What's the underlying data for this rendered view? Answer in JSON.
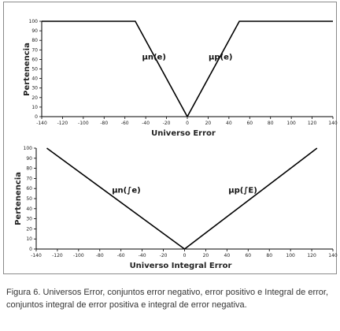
{
  "chart_data": [
    {
      "type": "line",
      "xlabel": "Universo Error",
      "ylabel": "Pertenencia",
      "xlim": [
        -140,
        140
      ],
      "ylim": [
        0,
        100
      ],
      "xticks": [
        -140,
        -120,
        -100,
        -80,
        -60,
        -40,
        -20,
        0,
        20,
        40,
        60,
        80,
        100,
        120,
        140
      ],
      "yticks": [
        0,
        10,
        20,
        30,
        40,
        50,
        60,
        70,
        80,
        90,
        100
      ],
      "grid": false,
      "series": [
        {
          "name": "μn(e)",
          "x": [
            -140,
            -50,
            0
          ],
          "y": [
            100,
            100,
            0
          ],
          "label_at": [
            -32,
            60
          ]
        },
        {
          "name": "μp(e)",
          "x": [
            0,
            50,
            140
          ],
          "y": [
            0,
            100,
            100
          ],
          "label_at": [
            32,
            60
          ]
        }
      ]
    },
    {
      "type": "line",
      "xlabel": "Universo Integral Error",
      "ylabel": "Pertenencia",
      "xlim": [
        -140,
        140
      ],
      "ylim": [
        0,
        100
      ],
      "xticks": [
        -140,
        -120,
        -100,
        -80,
        -60,
        -40,
        -20,
        0,
        20,
        40,
        60,
        80,
        100,
        120,
        140
      ],
      "yticks": [
        0,
        10,
        20,
        30,
        40,
        50,
        60,
        70,
        80,
        90,
        100
      ],
      "grid": false,
      "series": [
        {
          "name": "μn(∫e)",
          "x": [
            -130,
            0
          ],
          "y": [
            100,
            0
          ],
          "label_at": [
            -55,
            56
          ]
        },
        {
          "name": "μp(∫E)",
          "x": [
            0,
            125
          ],
          "y": [
            0,
            100
          ],
          "label_at": [
            55,
            56
          ]
        }
      ]
    }
  ],
  "caption": "Figura 6. Universos Error, conjuntos error negativo, error positivo e Integral de error, conjuntos integral de error positiva e integral de error negativa."
}
